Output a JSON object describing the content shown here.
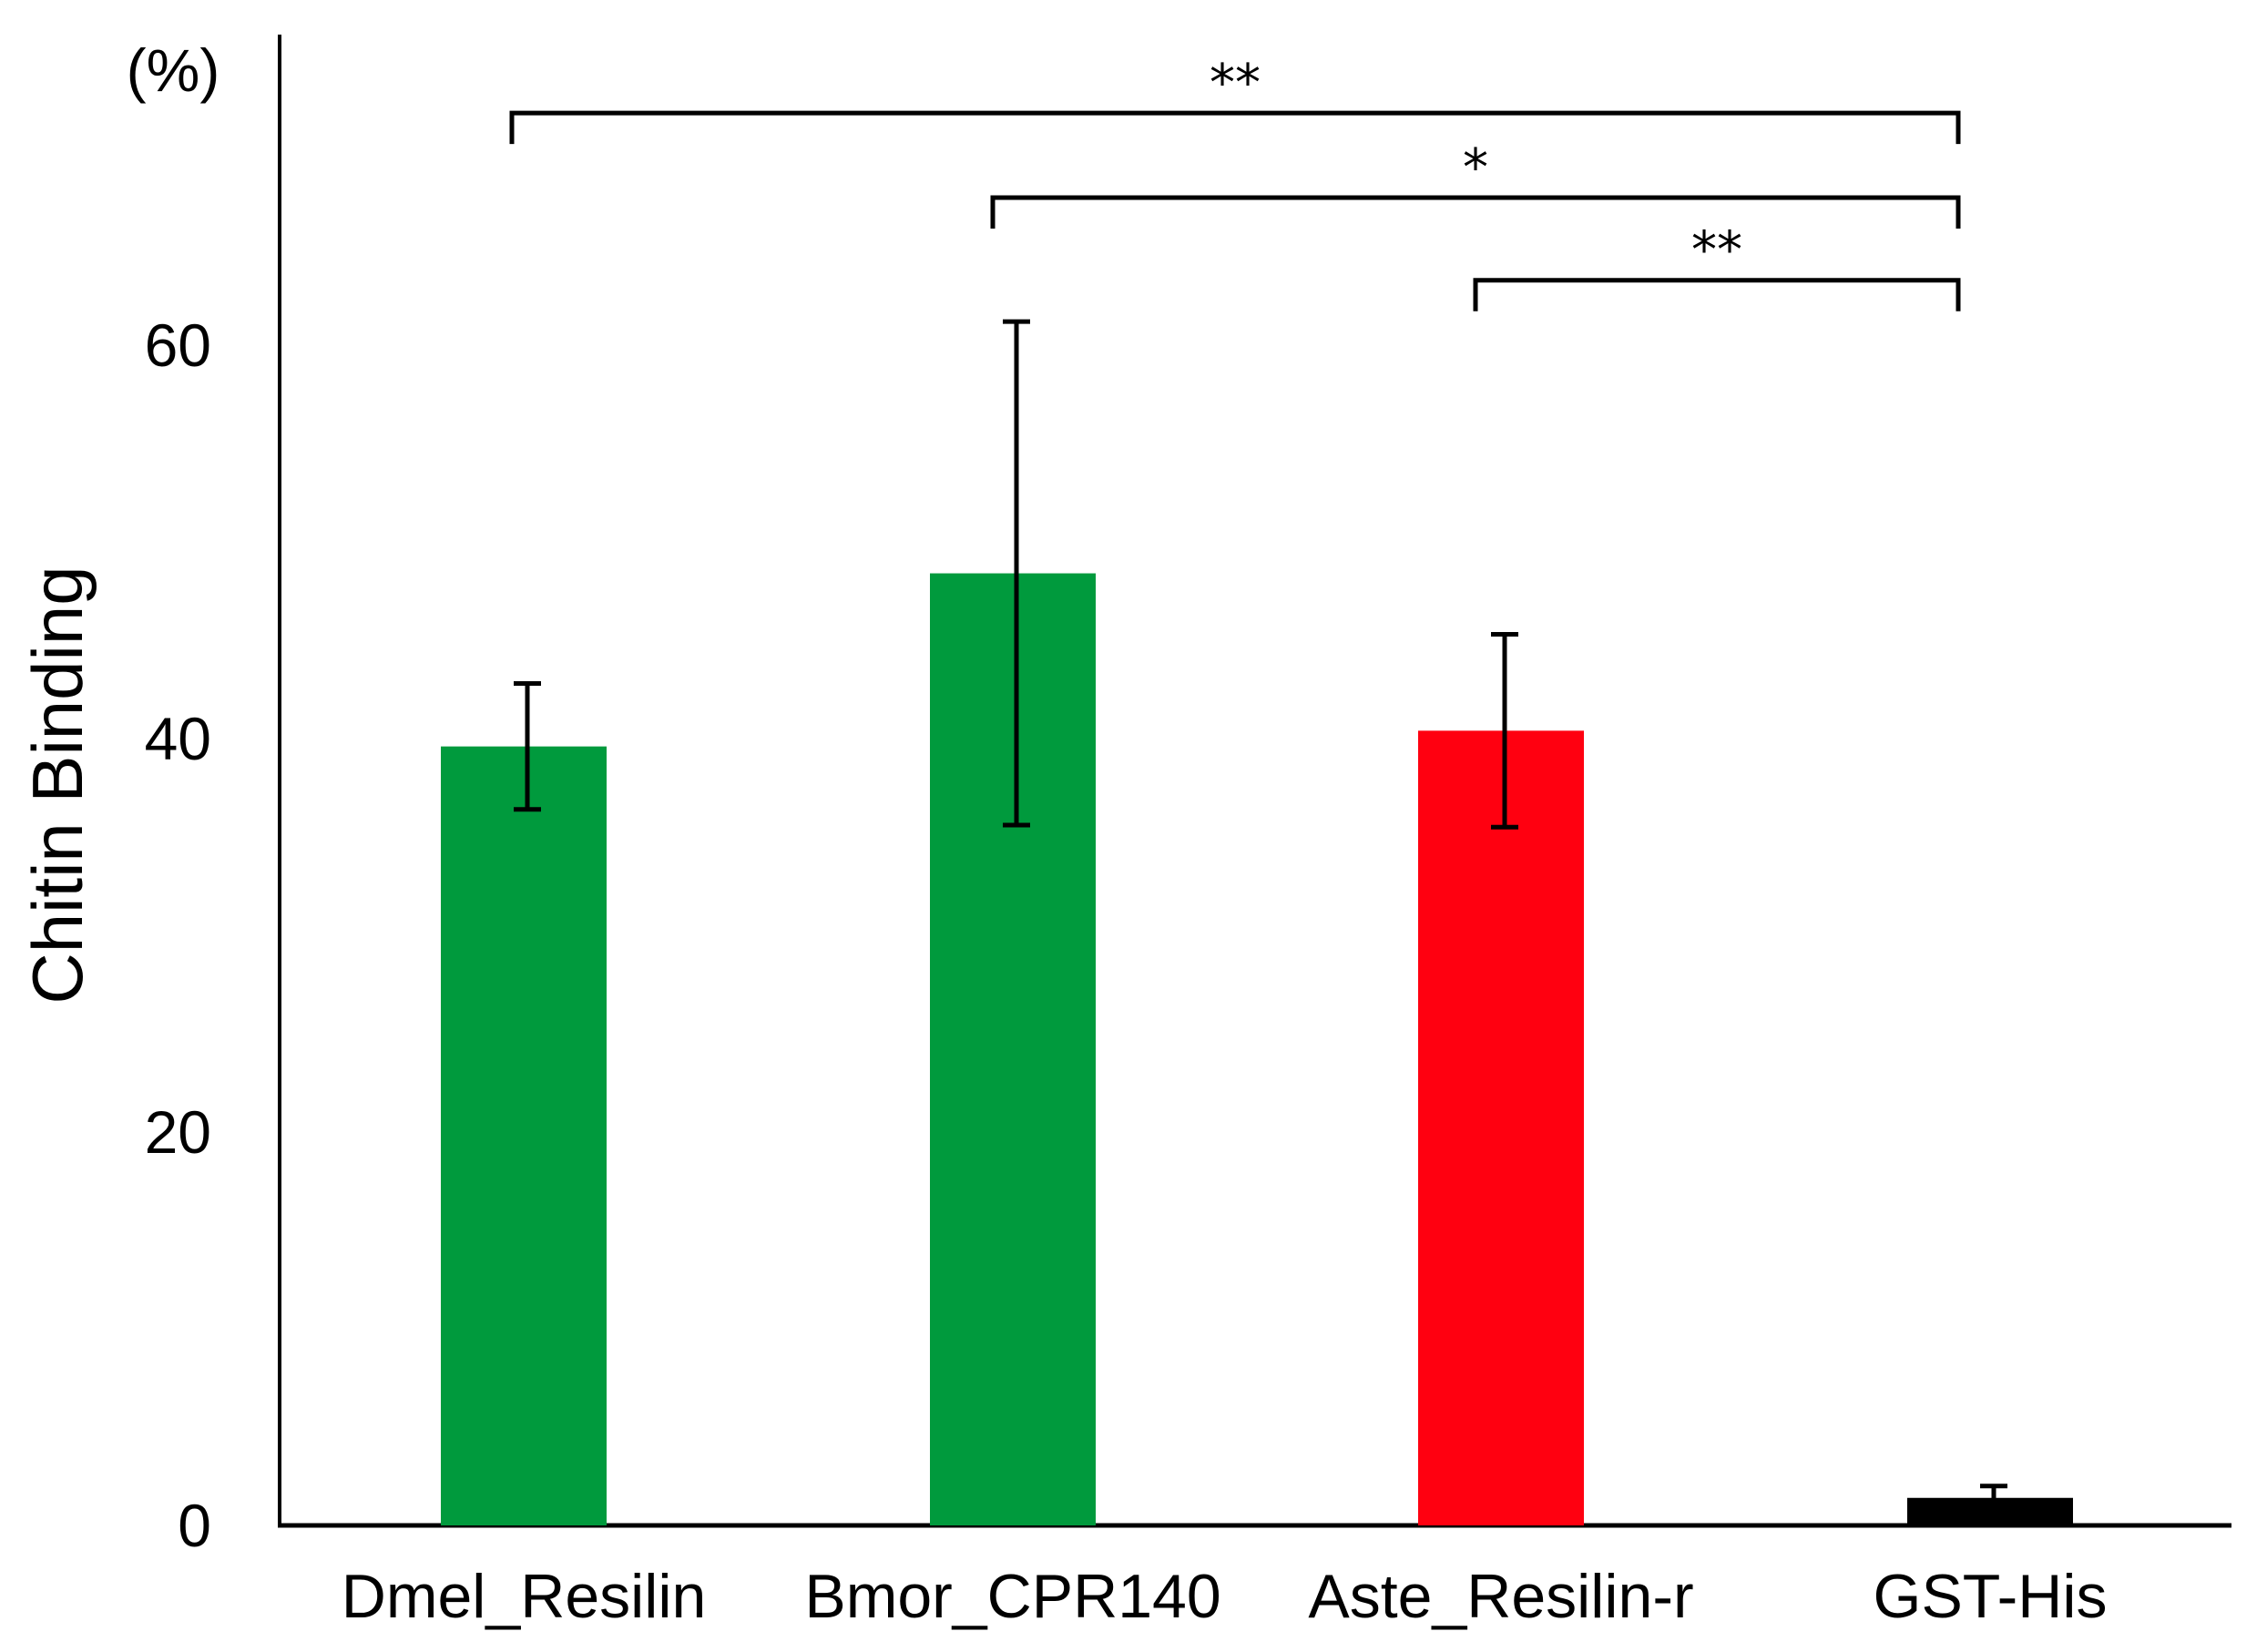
{
  "chart_data": {
    "type": "bar",
    "title": "",
    "xlabel": "",
    "ylabel": "Chitin Binding",
    "y_unit": "(%)",
    "ylim": [
      0,
      77
    ],
    "yticks": [
      0,
      20,
      40,
      60
    ],
    "grid": false,
    "categories": [
      "Dmel_Resilin",
      "Bmor_CPR140",
      "Aste_Resilin-r",
      "GST-His"
    ],
    "values": [
      39.6,
      48.4,
      40.4,
      1.4
    ],
    "errors": [
      3.2,
      12.8,
      4.9,
      0.6
    ],
    "colors": [
      "#009a3d",
      "#009a3d",
      "#ff0010",
      "#000000"
    ],
    "significance": [
      {
        "from": "Dmel_Resilin",
        "to": "GST-His",
        "label": "**",
        "y": 71.8
      },
      {
        "from": "Bmor_CPR140",
        "to": "GST-His",
        "label": "*",
        "y": 67.5
      },
      {
        "from": "Aste_Resilin-r",
        "to": "GST-His",
        "label": "**",
        "y": 63.3
      }
    ]
  }
}
